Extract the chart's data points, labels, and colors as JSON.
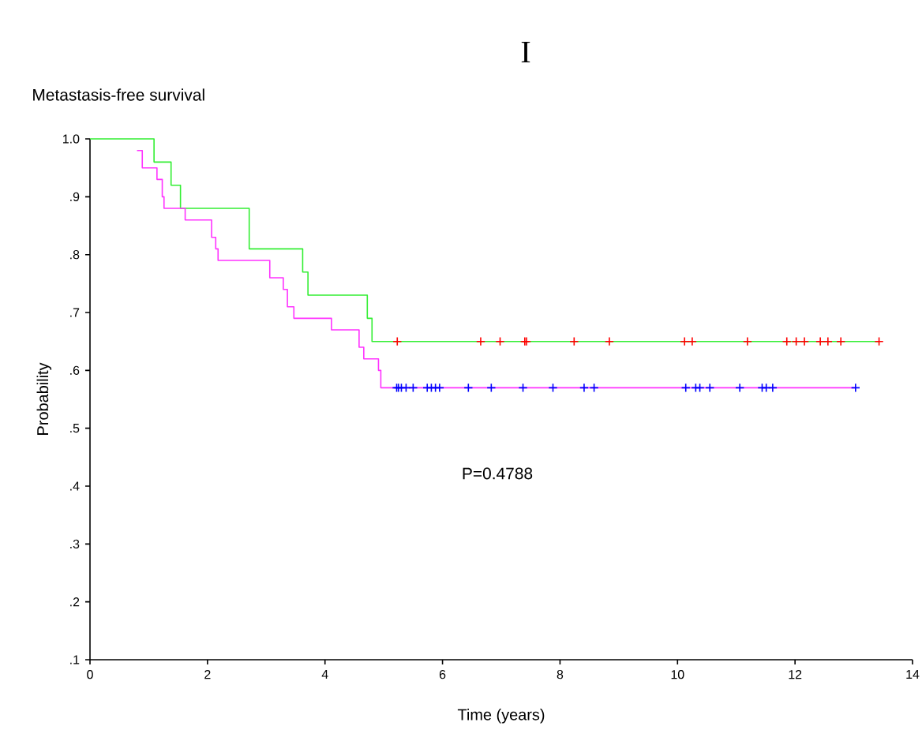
{
  "chart_data": {
    "type": "step",
    "title": "Metastasis-free survival",
    "xlabel": "Time (years)",
    "ylabel": "Probability",
    "annotations": [
      "I",
      "P=0.4788"
    ],
    "xlim": [
      0,
      14
    ],
    "xticks": [
      0,
      2,
      4,
      6,
      8,
      10,
      12,
      14
    ],
    "ylim": [
      0.1,
      1.0
    ],
    "yticks": [
      {
        "value": 0.1,
        "label": ".1"
      },
      {
        "value": 0.2,
        "label": ".2"
      },
      {
        "value": 0.3,
        "label": ".3"
      },
      {
        "value": 0.4,
        "label": ".4"
      },
      {
        "value": 0.5,
        "label": ".5"
      },
      {
        "value": 0.6,
        "label": ".6"
      },
      {
        "value": 0.7,
        "label": ".7"
      },
      {
        "value": 0.8,
        "label": ".8"
      },
      {
        "value": 0.9,
        "label": ".9"
      },
      {
        "value": 1.0,
        "label": "1.0"
      }
    ],
    "grid": false,
    "series": [
      {
        "color": "#33ee33",
        "marker": "none",
        "x": [
          0,
          1.09,
          1.38,
          1.54,
          2.71,
          3.62,
          3.71,
          4.72,
          4.8,
          13.43
        ],
        "values": [
          1.0,
          0.96,
          0.92,
          0.88,
          0.81,
          0.77,
          0.73,
          0.69,
          0.65,
          0.65
        ]
      },
      {
        "color": "#ff33ff",
        "marker": "none",
        "x": [
          0.8,
          0.89,
          1.14,
          1.23,
          1.26,
          1.62,
          2.07,
          2.14,
          2.18,
          3.06,
          3.29,
          3.36,
          3.47,
          4.11,
          4.58,
          4.66,
          4.91,
          4.95,
          13.03
        ],
        "values": [
          0.98,
          0.95,
          0.93,
          0.9,
          0.88,
          0.86,
          0.83,
          0.81,
          0.79,
          0.76,
          0.74,
          0.71,
          0.69,
          0.67,
          0.64,
          0.62,
          0.6,
          0.57,
          0.57
        ]
      },
      {
        "type": "scatter",
        "color": "#ff0000",
        "marker": "cross",
        "x": [
          5.23,
          6.65,
          6.98,
          7.4,
          7.43,
          8.24,
          8.84,
          10.12,
          10.25,
          11.19,
          11.86,
          12.02,
          12.16,
          12.43,
          12.56,
          12.78,
          13.43
        ],
        "values": [
          0.65,
          0.65,
          0.65,
          0.65,
          0.65,
          0.65,
          0.65,
          0.65,
          0.65,
          0.65,
          0.65,
          0.65,
          0.65,
          0.65,
          0.65,
          0.65,
          0.65
        ]
      },
      {
        "type": "scatter",
        "color": "#0000ff",
        "marker": "cross",
        "x": [
          5.22,
          5.25,
          5.3,
          5.38,
          5.5,
          5.74,
          5.81,
          5.88,
          5.95,
          6.44,
          6.83,
          7.37,
          7.88,
          8.41,
          8.58,
          10.14,
          10.31,
          10.38,
          10.55,
          11.06,
          11.44,
          11.51,
          11.62,
          13.03
        ],
        "values": [
          0.57,
          0.57,
          0.57,
          0.57,
          0.57,
          0.57,
          0.57,
          0.57,
          0.57,
          0.57,
          0.57,
          0.57,
          0.57,
          0.57,
          0.57,
          0.57,
          0.57,
          0.57,
          0.57,
          0.57,
          0.57,
          0.57,
          0.57,
          0.57
        ]
      }
    ]
  }
}
